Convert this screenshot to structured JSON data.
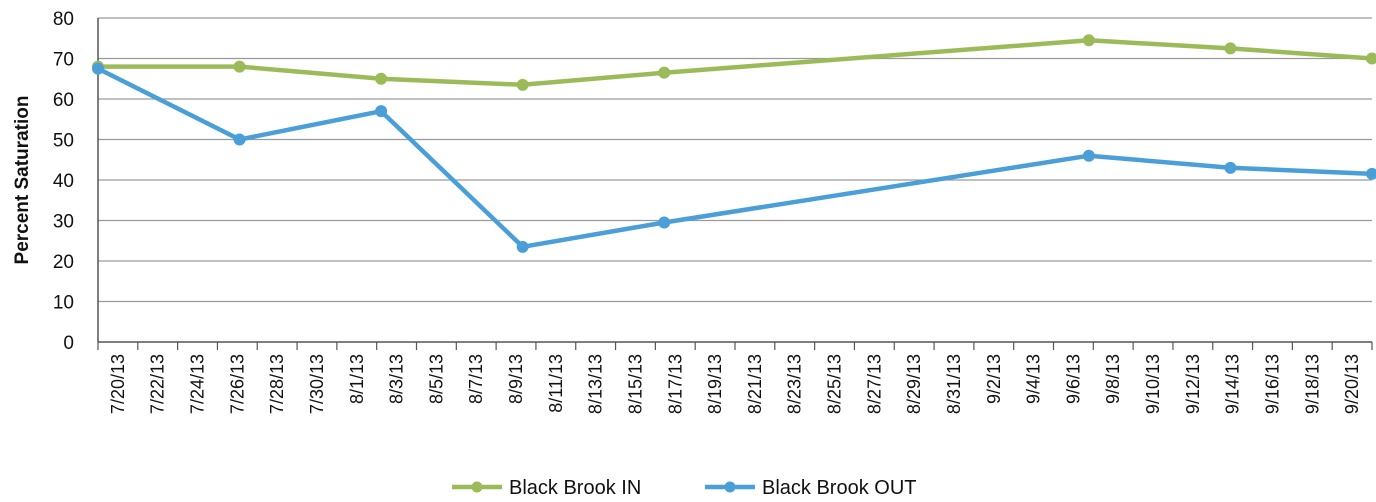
{
  "chart_data": {
    "type": "line",
    "title": "",
    "xlabel": "",
    "ylabel": "Percent Saturation",
    "ylim": [
      0,
      80
    ],
    "yticks": [
      0,
      10,
      20,
      30,
      40,
      50,
      60,
      70,
      80
    ],
    "grid": true,
    "legend_position": "bottom",
    "x_tick_labels": [
      "7/20/13",
      "7/22/13",
      "7/24/13",
      "7/26/13",
      "7/28/13",
      "7/30/13",
      "8/1/13",
      "8/3/13",
      "8/5/13",
      "8/7/13",
      "8/9/13",
      "8/11/13",
      "8/13/13",
      "8/15/13",
      "8/17/13",
      "8/19/13",
      "8/21/13",
      "8/23/13",
      "8/25/13",
      "8/27/13",
      "8/29/13",
      "8/31/13",
      "9/2/13",
      "9/4/13",
      "9/6/13",
      "9/8/13",
      "9/10/13",
      "9/12/13",
      "9/14/13",
      "9/16/13",
      "9/18/13",
      "9/20/13"
    ],
    "x_range": [
      "7/20/13",
      "9/21/13"
    ],
    "series": [
      {
        "name": "Black Brook IN",
        "color": "#9bbb59",
        "points": [
          {
            "x": "7/20/13",
            "y": 68
          },
          {
            "x": "7/27/13",
            "y": 68
          },
          {
            "x": "8/3/13",
            "y": 65
          },
          {
            "x": "8/10/13",
            "y": 63.5
          },
          {
            "x": "8/17/13",
            "y": 66.5
          },
          {
            "x": "9/7/13",
            "y": 74.5
          },
          {
            "x": "9/14/13",
            "y": 72.5
          },
          {
            "x": "9/21/13",
            "y": 70
          }
        ]
      },
      {
        "name": "Black Brook OUT",
        "color": "#4a9fd8",
        "points": [
          {
            "x": "7/20/13",
            "y": 67.5
          },
          {
            "x": "7/27/13",
            "y": 50
          },
          {
            "x": "8/3/13",
            "y": 57
          },
          {
            "x": "8/10/13",
            "y": 23.5
          },
          {
            "x": "8/17/13",
            "y": 29.5
          },
          {
            "x": "9/7/13",
            "y": 46
          },
          {
            "x": "9/14/13",
            "y": 43
          },
          {
            "x": "9/21/13",
            "y": 41.5
          }
        ]
      }
    ]
  }
}
